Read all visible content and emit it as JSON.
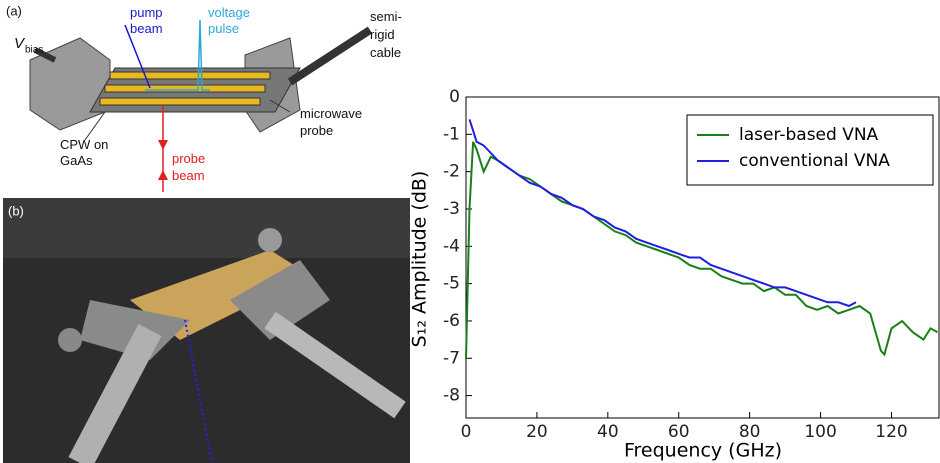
{
  "panel_a": {
    "label": "(a)",
    "pump_beam": [
      "pump",
      "beam"
    ],
    "voltage_pulse": [
      "voltage",
      "pulse"
    ],
    "cable": [
      "semi-",
      "rigid",
      "cable"
    ],
    "vbias": "V",
    "vbias_sub": "bias",
    "probe": [
      "microwave",
      "probe"
    ],
    "cpw": [
      "CPW on",
      "GaAs"
    ],
    "probe_beam": [
      "probe",
      "beam"
    ]
  },
  "panel_b": {
    "label": "(b)"
  },
  "chart_data": {
    "type": "line",
    "xlabel": "Frequency (GHz)",
    "ylabel": "S₁₂ Amplitude (dB)",
    "xlim": [
      0,
      133.4
    ],
    "xticks": [
      0,
      20,
      40,
      60,
      80,
      100,
      120
    ],
    "ylim": [
      -8.6,
      0
    ],
    "yticks": [
      0,
      -1,
      -2,
      -3,
      -4,
      -5,
      -6,
      -7,
      -8
    ],
    "legend": "upper right",
    "series": [
      {
        "name": "laser-based VNA",
        "color": "#1a7f1a",
        "x": [
          0,
          1,
          2,
          3,
          5,
          7,
          9,
          12,
          15,
          18,
          21,
          24,
          27,
          30,
          33,
          36,
          39,
          42,
          45,
          48,
          51,
          54,
          57,
          60,
          63,
          66,
          69,
          72,
          75,
          78,
          81,
          84,
          87,
          90,
          93,
          96,
          99,
          102,
          105,
          108,
          111,
          114,
          117,
          118,
          120,
          123,
          126,
          129,
          131,
          133
        ],
        "values": [
          -7,
          -3,
          -1.2,
          -1.4,
          -2,
          -1.6,
          -1.7,
          -1.9,
          -2.1,
          -2.2,
          -2.4,
          -2.6,
          -2.8,
          -2.9,
          -3.0,
          -3.2,
          -3.4,
          -3.6,
          -3.7,
          -3.9,
          -4.0,
          -4.1,
          -4.2,
          -4.3,
          -4.5,
          -4.6,
          -4.6,
          -4.8,
          -4.9,
          -5.0,
          -5.0,
          -5.2,
          -5.1,
          -5.3,
          -5.3,
          -5.6,
          -5.7,
          -5.6,
          -5.8,
          -5.7,
          -5.6,
          -5.8,
          -6.8,
          -6.9,
          -6.2,
          -6.0,
          -6.3,
          -6.5,
          -6.2,
          -6.3
        ]
      },
      {
        "name": "conventional VNA",
        "color": "#1f1fe0",
        "x": [
          1,
          2,
          3,
          5,
          7,
          9,
          12,
          15,
          18,
          21,
          24,
          27,
          30,
          33,
          36,
          39,
          42,
          45,
          48,
          51,
          54,
          57,
          60,
          63,
          66,
          69,
          72,
          75,
          78,
          81,
          84,
          87,
          90,
          93,
          96,
          99,
          102,
          105,
          108,
          110
        ],
        "values": [
          -0.6,
          -0.9,
          -1.2,
          -1.3,
          -1.5,
          -1.7,
          -1.9,
          -2.1,
          -2.3,
          -2.4,
          -2.6,
          -2.7,
          -2.9,
          -3.0,
          -3.2,
          -3.3,
          -3.5,
          -3.6,
          -3.8,
          -3.9,
          -4.0,
          -4.1,
          -4.2,
          -4.3,
          -4.3,
          -4.5,
          -4.6,
          -4.7,
          -4.8,
          -4.9,
          -5.0,
          -5.1,
          -5.1,
          -5.2,
          -5.3,
          -5.4,
          -5.5,
          -5.5,
          -5.6,
          -5.5
        ]
      }
    ]
  }
}
